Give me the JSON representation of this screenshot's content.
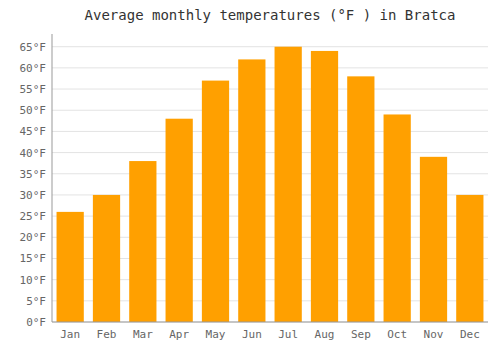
{
  "chart_data": {
    "type": "bar",
    "title": "Average monthly temperatures (°F ) in Bratca",
    "categories": [
      "Jan",
      "Feb",
      "Mar",
      "Apr",
      "May",
      "Jun",
      "Jul",
      "Aug",
      "Sep",
      "Oct",
      "Nov",
      "Dec"
    ],
    "values": [
      26,
      30,
      38,
      48,
      57,
      62,
      65,
      64,
      58,
      49,
      39,
      30
    ],
    "color": "#FFA000",
    "ylim": [
      0,
      68
    ],
    "yticks": [
      {
        "value": 0,
        "label": "0°F"
      },
      {
        "value": 5,
        "label": "5°F"
      },
      {
        "value": 10,
        "label": "10°F"
      },
      {
        "value": 15,
        "label": "15°F"
      },
      {
        "value": 20,
        "label": "20°F"
      },
      {
        "value": 25,
        "label": "25°F"
      },
      {
        "value": 30,
        "label": "30°F"
      },
      {
        "value": 35,
        "label": "35°F"
      },
      {
        "value": 40,
        "label": "40°F"
      },
      {
        "value": 45,
        "label": "45°F"
      },
      {
        "value": 50,
        "label": "50°F"
      },
      {
        "value": 55,
        "label": "55°F"
      },
      {
        "value": 60,
        "label": "60°F"
      },
      {
        "value": 65,
        "label": "65°F"
      }
    ],
    "grid": true
  }
}
